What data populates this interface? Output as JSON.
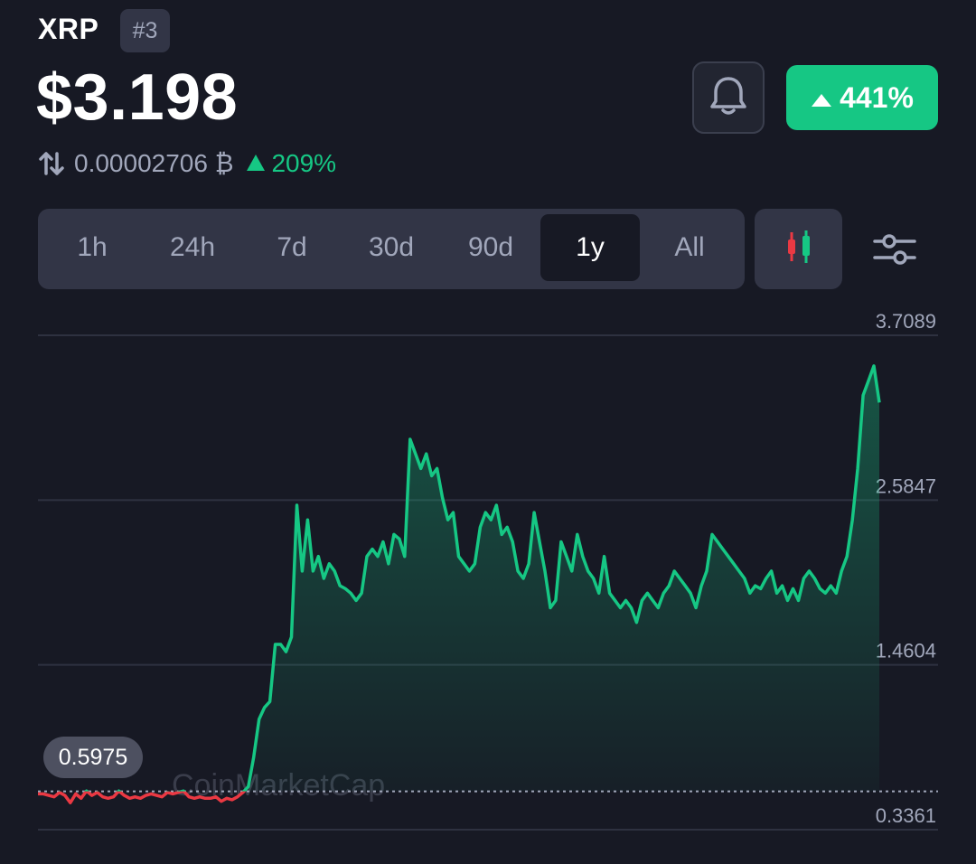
{
  "coin": {
    "symbol": "XRP",
    "rank": "#3",
    "price": "$3.198"
  },
  "change_pill": {
    "value": "441%",
    "direction": "up"
  },
  "btc_price": {
    "value": "0.00002706 ₿",
    "change": "209%"
  },
  "timeframes": [
    "1h",
    "24h",
    "7d",
    "30d",
    "90d",
    "1y",
    "All"
  ],
  "active_timeframe": "1y",
  "icons": {
    "bell": "bell-icon",
    "candles": "candlestick-icon",
    "settings": "sliders-icon",
    "swap": "swap-arrows-icon"
  },
  "colors": {
    "background": "#171924",
    "up": "#16c784",
    "down": "#ea3943",
    "muted": "#a1a7bb",
    "panel": "#323546"
  },
  "start_badge": "0.5975",
  "watermark": "CoinMarketCap",
  "chart_data": {
    "type": "line",
    "period": "1y",
    "y_ticks": [
      "3.7089",
      "2.5847",
      "1.4604",
      "0.3361"
    ],
    "ylim": [
      0.3361,
      3.7089
    ],
    "baseline": 0.5975,
    "grid": true,
    "color_below_baseline": "#ea3943",
    "color_above_baseline": "#16c784",
    "y": [
      0.58,
      0.58,
      0.57,
      0.56,
      0.59,
      0.57,
      0.52,
      0.58,
      0.55,
      0.6,
      0.57,
      0.59,
      0.56,
      0.55,
      0.56,
      0.6,
      0.57,
      0.55,
      0.56,
      0.55,
      0.57,
      0.58,
      0.57,
      0.56,
      0.59,
      0.58,
      0.59,
      0.6,
      0.56,
      0.55,
      0.56,
      0.55,
      0.55,
      0.56,
      0.53,
      0.55,
      0.54,
      0.56,
      0.59,
      0.63,
      0.83,
      1.09,
      1.17,
      1.21,
      1.6,
      1.6,
      1.55,
      1.65,
      2.55,
      2.1,
      2.45,
      2.1,
      2.2,
      2.05,
      2.15,
      2.1,
      2.0,
      1.98,
      1.95,
      1.9,
      1.95,
      2.2,
      2.25,
      2.2,
      2.3,
      2.15,
      2.35,
      2.32,
      2.2,
      3.0,
      2.9,
      2.8,
      2.9,
      2.75,
      2.8,
      2.6,
      2.45,
      2.5,
      2.2,
      2.15,
      2.1,
      2.15,
      2.4,
      2.5,
      2.45,
      2.55,
      2.35,
      2.4,
      2.3,
      2.1,
      2.05,
      2.15,
      2.5,
      2.3,
      2.1,
      1.85,
      1.9,
      2.3,
      2.2,
      2.1,
      2.35,
      2.2,
      2.1,
      2.05,
      1.95,
      2.2,
      1.95,
      1.9,
      1.85,
      1.9,
      1.85,
      1.75,
      1.9,
      1.95,
      1.9,
      1.85,
      1.95,
      2.0,
      2.1,
      2.05,
      2.0,
      1.95,
      1.85,
      2.0,
      2.1,
      2.35,
      2.3,
      2.25,
      2.2,
      2.15,
      2.1,
      2.05,
      1.95,
      2.0,
      1.98,
      2.05,
      2.1,
      1.95,
      2.0,
      1.9,
      1.98,
      1.9,
      2.05,
      2.1,
      2.05,
      1.98,
      1.95,
      2.0,
      1.95,
      2.1,
      2.2,
      2.45,
      2.8,
      3.3,
      3.4,
      3.5,
      3.25
    ]
  }
}
